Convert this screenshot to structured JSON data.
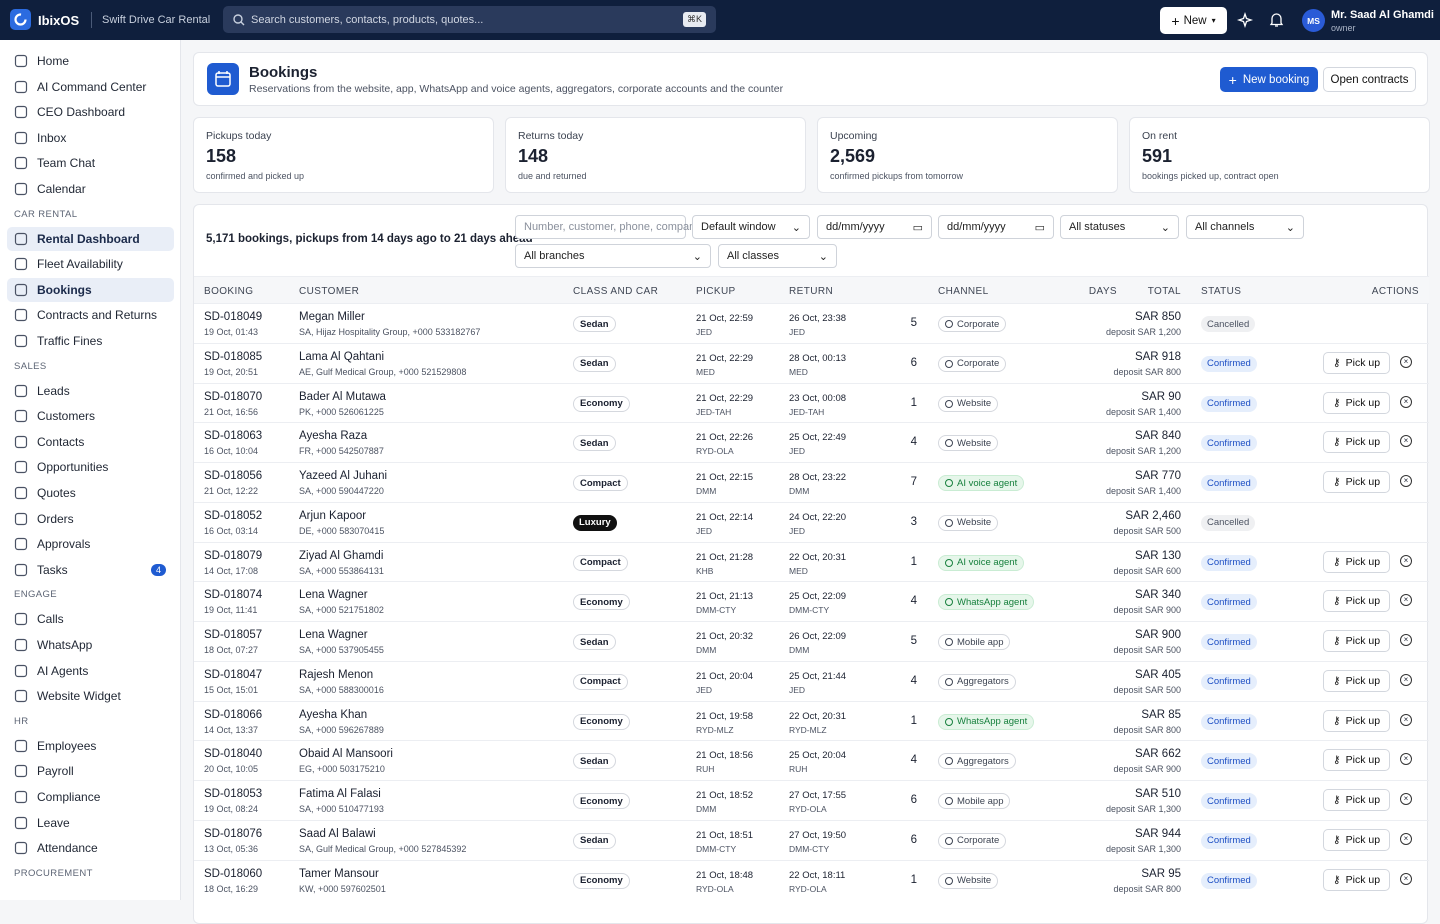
{
  "topbar": {
    "brand": "IbixOS",
    "company": "Swift Drive Car Rental",
    "search": "Search customers, contacts, products, quotes...",
    "shortcut": "⌘K",
    "new": "New",
    "avatar": "MS",
    "user": "Mr. Saad Al Ghamdi",
    "role": "owner"
  },
  "sidebar": {
    "items": [
      {
        "label": "Home"
      },
      {
        "label": "AI Command Center"
      },
      {
        "label": "CEO Dashboard"
      },
      {
        "label": "Inbox"
      },
      {
        "label": "Team Chat"
      },
      {
        "label": "Calendar"
      }
    ],
    "sections": [
      {
        "heading": "CAR RENTAL",
        "items": [
          {
            "label": "Rental Dashboard",
            "active": true
          },
          {
            "label": "Fleet Availability"
          },
          {
            "label": "Bookings",
            "active": true
          },
          {
            "label": "Contracts and Returns"
          },
          {
            "label": "Traffic Fines"
          }
        ]
      },
      {
        "heading": "SALES",
        "items": [
          {
            "label": "Leads"
          },
          {
            "label": "Customers"
          },
          {
            "label": "Contacts"
          },
          {
            "label": "Opportunities"
          },
          {
            "label": "Quotes"
          },
          {
            "label": "Orders"
          },
          {
            "label": "Approvals"
          },
          {
            "label": "Tasks",
            "badge": "4"
          }
        ]
      },
      {
        "heading": "ENGAGE",
        "items": [
          {
            "label": "Calls"
          },
          {
            "label": "WhatsApp"
          },
          {
            "label": "AI Agents"
          },
          {
            "label": "Website Widget"
          }
        ]
      },
      {
        "heading": "HR",
        "items": [
          {
            "label": "Employees"
          },
          {
            "label": "Payroll"
          },
          {
            "label": "Compliance"
          },
          {
            "label": "Leave"
          },
          {
            "label": "Attendance"
          }
        ]
      },
      {
        "heading": "PROCUREMENT",
        "items": []
      }
    ]
  },
  "header": {
    "title": "Bookings",
    "subtitle": "Reservations from the website, app, WhatsApp and voice agents, aggregators, corporate accounts and the counter",
    "primary": "New booking",
    "secondary": "Open contracts"
  },
  "stats": [
    {
      "label": "Pickups today",
      "value": "158",
      "note": "confirmed and picked up"
    },
    {
      "label": "Returns today",
      "value": "148",
      "note": "due and returned"
    },
    {
      "label": "Upcoming",
      "value": "2,569",
      "note": "confirmed pickups from tomorrow"
    },
    {
      "label": "On rent",
      "value": "591",
      "note": "bookings picked up, contract open"
    }
  ],
  "filters": {
    "summary": "5,171 bookings, pickups from 14 days ago to 21 days ahead",
    "search": "Number, customer, phone, company",
    "window": "Default window",
    "from": "dd/mm/yyyy",
    "to": "dd/mm/yyyy",
    "status": "All statuses",
    "channel": "All channels",
    "branch": "All branches",
    "class": "All classes"
  },
  "table": {
    "columns": [
      "BOOKING",
      "CUSTOMER",
      "CLASS AND CAR",
      "PICKUP",
      "RETURN",
      "DAYS",
      "CHANNEL",
      "TOTAL",
      "STATUS",
      "ACTIONS"
    ],
    "rows": [
      {
        "booking": "SD-018049",
        "created": "19 Oct, 01:43",
        "customer": "Megan Miller",
        "details": "SA, Hijaz Hospitality Group, +000 533182767",
        "class": "Sedan",
        "pickup": "21 Oct, 22:59",
        "pickup_loc": "JED",
        "return": "26 Oct, 23:38",
        "return_loc": "JED",
        "days": "5",
        "channel": "Corporate",
        "total": "SAR 850",
        "deposit": "deposit SAR 1,200",
        "status": "Cancelled"
      },
      {
        "booking": "SD-018085",
        "created": "19 Oct, 20:51",
        "customer": "Lama Al Qahtani",
        "details": "AE, Gulf Medical Group, +000 521529808",
        "class": "Sedan",
        "pickup": "21 Oct, 22:29",
        "pickup_loc": "MED",
        "return": "28 Oct, 00:13",
        "return_loc": "MED",
        "days": "6",
        "channel": "Corporate",
        "total": "SAR 918",
        "deposit": "deposit SAR 800",
        "status": "Confirmed",
        "action": "Pick up"
      },
      {
        "booking": "SD-018070",
        "created": "21 Oct, 16:56",
        "customer": "Bader Al Mutawa",
        "details": "PK, +000 526061225",
        "class": "Economy",
        "pickup": "21 Oct, 22:29",
        "pickup_loc": "JED-TAH",
        "return": "23 Oct, 00:08",
        "return_loc": "JED-TAH",
        "days": "1",
        "channel": "Website",
        "total": "SAR 90",
        "deposit": "deposit SAR 1,400",
        "status": "Confirmed",
        "action": "Pick up"
      },
      {
        "booking": "SD-018063",
        "created": "16 Oct, 10:04",
        "customer": "Ayesha Raza",
        "details": "FR, +000 542507887",
        "class": "Sedan",
        "pickup": "21 Oct, 22:26",
        "pickup_loc": "RYD-OLA",
        "return": "25 Oct, 22:49",
        "return_loc": "JED",
        "days": "4",
        "channel": "Website",
        "total": "SAR 840",
        "deposit": "deposit SAR 1,200",
        "status": "Confirmed",
        "action": "Pick up"
      },
      {
        "booking": "SD-018056",
        "created": "21 Oct, 12:22",
        "customer": "Yazeed Al Juhani",
        "details": "SA, +000 590447220",
        "class": "Compact",
        "pickup": "21 Oct, 22:15",
        "pickup_loc": "DMM",
        "return": "28 Oct, 23:22",
        "return_loc": "DMM",
        "days": "7",
        "channel": "AI voice agent",
        "total": "SAR 770",
        "deposit": "deposit SAR 1,400",
        "status": "Confirmed",
        "action": "Pick up"
      },
      {
        "booking": "SD-018052",
        "created": "16 Oct, 03:14",
        "customer": "Arjun Kapoor",
        "details": "DE, +000 583070415",
        "class": "Luxury",
        "pickup": "21 Oct, 22:14",
        "pickup_loc": "JED",
        "return": "24 Oct, 22:20",
        "return_loc": "JED",
        "days": "3",
        "channel": "Website",
        "total": "SAR 2,460",
        "deposit": "deposit SAR 500",
        "status": "Cancelled"
      },
      {
        "booking": "SD-018079",
        "created": "14 Oct, 17:08",
        "customer": "Ziyad Al Ghamdi",
        "details": "SA, +000 553864131",
        "class": "Compact",
        "pickup": "21 Oct, 21:28",
        "pickup_loc": "KHB",
        "return": "22 Oct, 20:31",
        "return_loc": "MED",
        "days": "1",
        "channel": "AI voice agent",
        "total": "SAR 130",
        "deposit": "deposit SAR 600",
        "status": "Confirmed",
        "action": "Pick up"
      },
      {
        "booking": "SD-018074",
        "created": "19 Oct, 11:41",
        "customer": "Lena Wagner",
        "details": "SA, +000 521751802",
        "class": "Economy",
        "pickup": "21 Oct, 21:13",
        "pickup_loc": "DMM-CTY",
        "return": "25 Oct, 22:09",
        "return_loc": "DMM-CTY",
        "days": "4",
        "channel": "WhatsApp agent",
        "total": "SAR 340",
        "deposit": "deposit SAR 900",
        "status": "Confirmed",
        "action": "Pick up"
      },
      {
        "booking": "SD-018057",
        "created": "18 Oct, 07:27",
        "customer": "Lena Wagner",
        "details": "SA, +000 537905455",
        "class": "Sedan",
        "pickup": "21 Oct, 20:32",
        "pickup_loc": "DMM",
        "return": "26 Oct, 22:09",
        "return_loc": "DMM",
        "days": "5",
        "channel": "Mobile app",
        "total": "SAR 900",
        "deposit": "deposit SAR 500",
        "status": "Confirmed",
        "action": "Pick up"
      },
      {
        "booking": "SD-018047",
        "created": "15 Oct, 15:01",
        "customer": "Rajesh Menon",
        "details": "SA, +000 588300016",
        "class": "Compact",
        "pickup": "21 Oct, 20:04",
        "pickup_loc": "JED",
        "return": "25 Oct, 21:44",
        "return_loc": "JED",
        "days": "4",
        "channel": "Aggregators",
        "total": "SAR 405",
        "deposit": "deposit SAR 500",
        "status": "Confirmed",
        "action": "Pick up"
      },
      {
        "booking": "SD-018066",
        "created": "14 Oct, 13:37",
        "customer": "Ayesha Khan",
        "details": "SA, +000 596267889",
        "class": "Economy",
        "pickup": "21 Oct, 19:58",
        "pickup_loc": "RYD-MLZ",
        "return": "22 Oct, 20:31",
        "return_loc": "RYD-MLZ",
        "days": "1",
        "channel": "WhatsApp agent",
        "total": "SAR 85",
        "deposit": "deposit SAR 800",
        "status": "Confirmed",
        "action": "Pick up"
      },
      {
        "booking": "SD-018040",
        "created": "20 Oct, 10:05",
        "customer": "Obaid Al Mansoori",
        "details": "EG, +000 503175210",
        "class": "Sedan",
        "pickup": "21 Oct, 18:56",
        "pickup_loc": "RUH",
        "return": "25 Oct, 20:04",
        "return_loc": "RUH",
        "days": "4",
        "channel": "Aggregators",
        "total": "SAR 662",
        "deposit": "deposit SAR 900",
        "status": "Confirmed",
        "action": "Pick up"
      },
      {
        "booking": "SD-018053",
        "created": "19 Oct, 08:24",
        "customer": "Fatima Al Falasi",
        "details": "SA, +000 510477193",
        "class": "Economy",
        "pickup": "21 Oct, 18:52",
        "pickup_loc": "DMM",
        "return": "27 Oct, 17:55",
        "return_loc": "RYD-OLA",
        "days": "6",
        "channel": "Mobile app",
        "total": "SAR 510",
        "deposit": "deposit SAR 1,300",
        "status": "Confirmed",
        "action": "Pick up"
      },
      {
        "booking": "SD-018076",
        "created": "13 Oct, 05:36",
        "customer": "Saad Al Balawi",
        "details": "SA, Gulf Medical Group, +000 527845392",
        "class": "Sedan",
        "pickup": "21 Oct, 18:51",
        "pickup_loc": "DMM-CTY",
        "return": "27 Oct, 19:50",
        "return_loc": "DMM-CTY",
        "days": "6",
        "channel": "Corporate",
        "total": "SAR 944",
        "deposit": "deposit SAR 1,300",
        "status": "Confirmed",
        "action": "Pick up"
      },
      {
        "booking": "SD-018060",
        "created": "18 Oct, 16:29",
        "customer": "Tamer Mansour",
        "details": "KW, +000 597602501",
        "class": "Economy",
        "pickup": "21 Oct, 18:48",
        "pickup_loc": "RYD-OLA",
        "return": "22 Oct, 18:11",
        "return_loc": "RYD-OLA",
        "days": "1",
        "channel": "Website",
        "total": "SAR 95",
        "deposit": "deposit SAR 800",
        "status": "Confirmed",
        "action": "Pick up"
      }
    ]
  }
}
